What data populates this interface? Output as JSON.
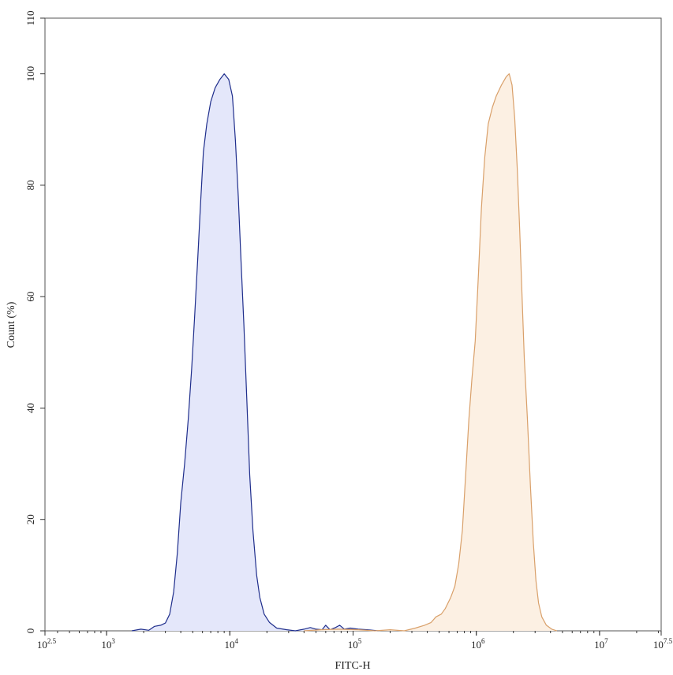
{
  "chart_data": {
    "type": "area",
    "title": "",
    "xlabel": "FITC-H",
    "ylabel": "Count (%)",
    "x_scale": "log10",
    "xlim": [
      316.23,
      31622777
    ],
    "ylim": [
      0,
      110
    ],
    "grid": false,
    "legend": "none",
    "x_ticks": [
      {
        "value": 316.23,
        "base": "10",
        "exp": "2.5"
      },
      {
        "value": 1000,
        "base": "10",
        "exp": "3"
      },
      {
        "value": 10000,
        "base": "10",
        "exp": "4"
      },
      {
        "value": 100000,
        "base": "10",
        "exp": "5"
      },
      {
        "value": 1000000,
        "base": "10",
        "exp": "6"
      },
      {
        "value": 10000000,
        "base": "10",
        "exp": "7"
      },
      {
        "value": 31622777,
        "base": "10",
        "exp": "7.5"
      }
    ],
    "y_ticks": [
      0,
      20,
      40,
      60,
      80,
      100,
      110
    ],
    "series": [
      {
        "stroke": "#1f2e8c",
        "fill": "#e4e7fa",
        "points": [
          [
            1600,
            0
          ],
          [
            1900,
            0.3
          ],
          [
            2200,
            0.1
          ],
          [
            2450,
            0.8
          ],
          [
            2750,
            1.0
          ],
          [
            3000,
            1.4
          ],
          [
            3250,
            3.0
          ],
          [
            3500,
            7.0
          ],
          [
            3750,
            14.0
          ],
          [
            4000,
            23.0
          ],
          [
            4300,
            30.0
          ],
          [
            4600,
            38.0
          ],
          [
            4900,
            47.0
          ],
          [
            5200,
            57.0
          ],
          [
            5500,
            67.0
          ],
          [
            5800,
            77.0
          ],
          [
            6100,
            86.0
          ],
          [
            6500,
            91.0
          ],
          [
            7000,
            95.0
          ],
          [
            7600,
            97.5
          ],
          [
            8300,
            99.0
          ],
          [
            9000,
            100.0
          ],
          [
            9800,
            99.0
          ],
          [
            10500,
            96.0
          ],
          [
            11100,
            88.0
          ],
          [
            11700,
            78.0
          ],
          [
            12300,
            67.0
          ],
          [
            13000,
            55.0
          ],
          [
            13700,
            42.0
          ],
          [
            14500,
            28.0
          ],
          [
            15400,
            18.0
          ],
          [
            16500,
            10.0
          ],
          [
            17500,
            6.0
          ],
          [
            19000,
            3.0
          ],
          [
            21000,
            1.5
          ],
          [
            24000,
            0.5
          ],
          [
            29000,
            0.2
          ],
          [
            34000,
            0
          ],
          [
            40000,
            0.3
          ],
          [
            45000,
            0.6
          ],
          [
            50000,
            0.3
          ],
          [
            56000,
            0.2
          ],
          [
            60000,
            1.0
          ],
          [
            65000,
            0.2
          ],
          [
            72000,
            0.6
          ],
          [
            78000,
            1.0
          ],
          [
            85000,
            0.3
          ],
          [
            95000,
            0.5
          ],
          [
            110000,
            0.3
          ],
          [
            130000,
            0.2
          ],
          [
            160000,
            0
          ]
        ]
      },
      {
        "stroke": "#d9a06a",
        "fill": "#fcf0e3",
        "points": [
          [
            40000,
            0
          ],
          [
            55000,
            0.2
          ],
          [
            75000,
            0.3
          ],
          [
            110000,
            0.2
          ],
          [
            150000,
            0
          ],
          [
            200000,
            0.2
          ],
          [
            260000,
            0
          ],
          [
            320000,
            0.5
          ],
          [
            380000,
            1.0
          ],
          [
            430000,
            1.5
          ],
          [
            470000,
            2.5
          ],
          [
            520000,
            3.0
          ],
          [
            560000,
            4.0
          ],
          [
            620000,
            6.0
          ],
          [
            670000,
            8.0
          ],
          [
            720000,
            12.0
          ],
          [
            770000,
            18.0
          ],
          [
            820000,
            28.0
          ],
          [
            870000,
            38.0
          ],
          [
            920000,
            45.0
          ],
          [
            980000,
            52.0
          ],
          [
            1040000,
            64.0
          ],
          [
            1100000,
            76.0
          ],
          [
            1170000,
            85.0
          ],
          [
            1250000,
            91.0
          ],
          [
            1350000,
            94.0
          ],
          [
            1450000,
            96.0
          ],
          [
            1600000,
            98.0
          ],
          [
            1750000,
            99.5
          ],
          [
            1850000,
            100.0
          ],
          [
            1950000,
            98.0
          ],
          [
            2050000,
            92.0
          ],
          [
            2150000,
            83.0
          ],
          [
            2250000,
            72.0
          ],
          [
            2350000,
            60.0
          ],
          [
            2450000,
            49.0
          ],
          [
            2600000,
            38.0
          ],
          [
            2750000,
            26.0
          ],
          [
            2900000,
            16.0
          ],
          [
            3050000,
            9.0
          ],
          [
            3200000,
            5.0
          ],
          [
            3400000,
            2.5
          ],
          [
            3700000,
            1.0
          ],
          [
            4100000,
            0.3
          ],
          [
            4500000,
            0
          ]
        ]
      }
    ]
  }
}
